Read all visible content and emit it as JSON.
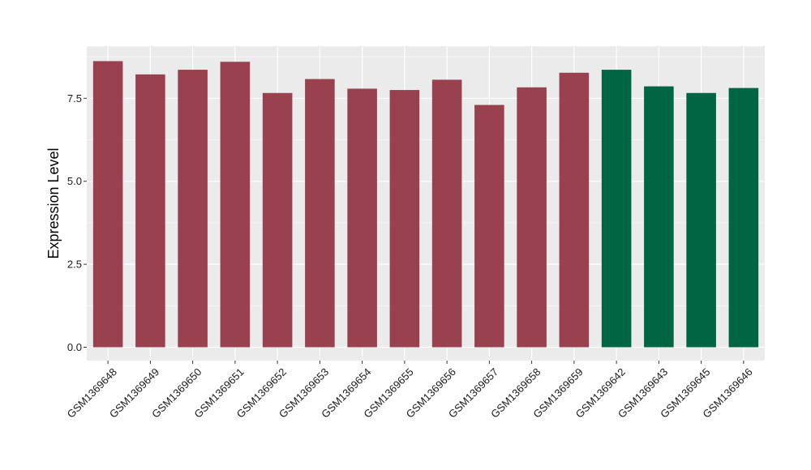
{
  "chart_data": {
    "type": "bar",
    "ylabel": "Expression Level",
    "xlabel": "",
    "ylim": [
      0,
      9.07
    ],
    "yticks": [
      0.0,
      2.5,
      5.0,
      7.5
    ],
    "ytick_labels": [
      "0.0",
      "2.5",
      "5.0",
      "7.5"
    ],
    "grid": true,
    "legend": "none",
    "categories": [
      "GSM1369648",
      "GSM1369649",
      "GSM1369650",
      "GSM1369651",
      "GSM1369652",
      "GSM1369653",
      "GSM1369654",
      "GSM1369655",
      "GSM1369656",
      "GSM1369657",
      "GSM1369658",
      "GSM1369659",
      "GSM1369642",
      "GSM1369643",
      "GSM1369645",
      "GSM1369646"
    ],
    "values": [
      8.62,
      8.22,
      8.36,
      8.6,
      7.66,
      8.08,
      7.79,
      7.75,
      8.06,
      7.3,
      7.83,
      8.27,
      8.36,
      7.86,
      7.66,
      7.81
    ],
    "groups": [
      0,
      0,
      0,
      0,
      0,
      0,
      0,
      0,
      0,
      0,
      0,
      0,
      1,
      1,
      1,
      1
    ],
    "colors": [
      "#9A414F",
      "#006543"
    ]
  }
}
